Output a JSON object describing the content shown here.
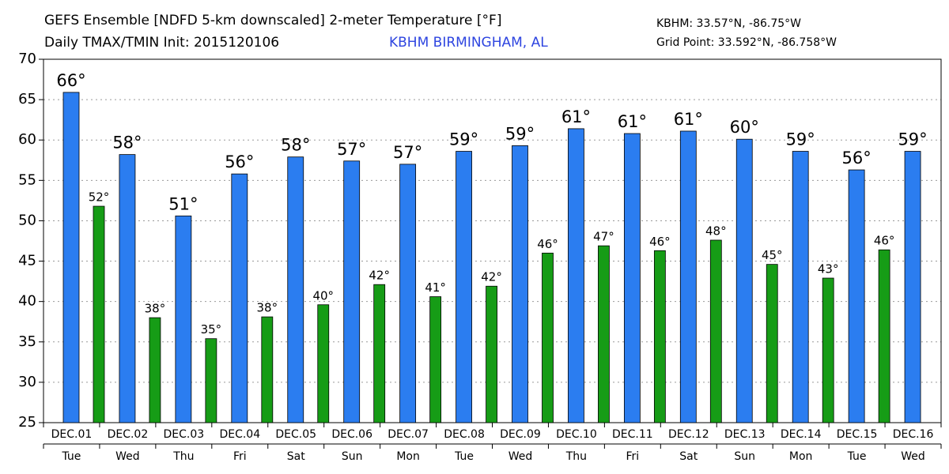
{
  "chart_data": {
    "type": "bar",
    "title": "GEFS Ensemble [NDFD 5-km downscaled] 2-meter Temperature [°F]",
    "subtitle": "Daily TMAX/TMIN Init: 2015120106",
    "location": "KBHM BIRMINGHAM, AL",
    "station": "KBHM: 33.57°N, -86.75°W",
    "grid_point": "Grid Point: 33.592°N, -86.758°W",
    "categories": [
      "DEC.01",
      "DEC.02",
      "DEC.03",
      "DEC.04",
      "DEC.05",
      "DEC.06",
      "DEC.07",
      "DEC.08",
      "DEC.09",
      "DEC.10",
      "DEC.11",
      "DEC.12",
      "DEC.13",
      "DEC.14",
      "DEC.15",
      "DEC.16"
    ],
    "weekdays": [
      "Tue",
      "Wed",
      "Thu",
      "Fri",
      "Sat",
      "Sun",
      "Mon",
      "Tue",
      "Wed",
      "Thu",
      "Fri",
      "Sat",
      "Sun",
      "Mon",
      "Tue",
      "Wed"
    ],
    "series": [
      {
        "color": "#2b7df0",
        "values": [
          65.9,
          58.2,
          50.6,
          55.8,
          57.9,
          57.4,
          57.0,
          58.6,
          59.3,
          61.4,
          60.8,
          61.1,
          60.1,
          58.6,
          56.3,
          58.6
        ],
        "value_labels": [
          "66°",
          "58°",
          "51°",
          "56°",
          "58°",
          "57°",
          "57°",
          "59°",
          "59°",
          "61°",
          "61°",
          "61°",
          "60°",
          "59°",
          "56°",
          "59°"
        ]
      },
      {
        "color": "#169c16",
        "values": [
          51.8,
          38.0,
          35.4,
          38.1,
          39.6,
          42.1,
          40.6,
          41.9,
          46.0,
          46.9,
          46.3,
          47.6,
          44.6,
          42.9,
          46.4,
          null
        ],
        "value_labels": [
          "52°",
          "38°",
          "35°",
          "38°",
          "40°",
          "42°",
          "41°",
          "42°",
          "46°",
          "47°",
          "46°",
          "48°",
          "45°",
          "43°",
          "46°",
          null
        ]
      }
    ],
    "ylim": [
      25,
      70
    ],
    "yticks": [
      25,
      30,
      35,
      40,
      45,
      50,
      55,
      60,
      65,
      70
    ],
    "grid": true
  }
}
